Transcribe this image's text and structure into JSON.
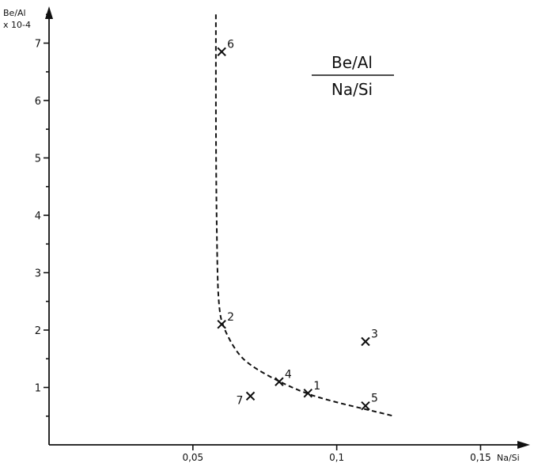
{
  "chart_data": {
    "type": "scatter",
    "title": "Be/Al",
    "title_denominator": "Na/Si",
    "ylabel": "Be/Al",
    "ylabel_scale": "x 10-4",
    "xlabel": "Na/Si",
    "xlim": [
      0,
      0.165
    ],
    "ylim": [
      0,
      7.6
    ],
    "x_ticks": [
      0.05,
      0.1,
      0.15
    ],
    "x_tick_labels": [
      "0,05",
      "0,1",
      "0,15"
    ],
    "y_ticks": [
      1,
      2,
      3,
      4,
      5,
      6,
      7
    ],
    "y_tick_labels": [
      "1",
      "2",
      "3",
      "4",
      "5",
      "6",
      "7"
    ],
    "grid": false,
    "legend": "none",
    "points": [
      {
        "label": "1",
        "x": 0.09,
        "y": 0.9
      },
      {
        "label": "2",
        "x": 0.06,
        "y": 2.1
      },
      {
        "label": "3",
        "x": 0.11,
        "y": 1.8
      },
      {
        "label": "4",
        "x": 0.08,
        "y": 1.1
      },
      {
        "label": "5",
        "x": 0.11,
        "y": 0.68
      },
      {
        "label": "6",
        "x": 0.06,
        "y": 6.85
      },
      {
        "label": "7",
        "x": 0.07,
        "y": 0.85
      }
    ],
    "trend_curve": {
      "style": "dashed",
      "x": [
        0.058,
        0.058,
        0.0585,
        0.059,
        0.06,
        0.065,
        0.07,
        0.08,
        0.09,
        0.1,
        0.11,
        0.12
      ],
      "y": [
        7.5,
        5.0,
        3.0,
        2.45,
        2.1,
        1.62,
        1.38,
        1.1,
        0.88,
        0.74,
        0.62,
        0.5
      ]
    }
  }
}
